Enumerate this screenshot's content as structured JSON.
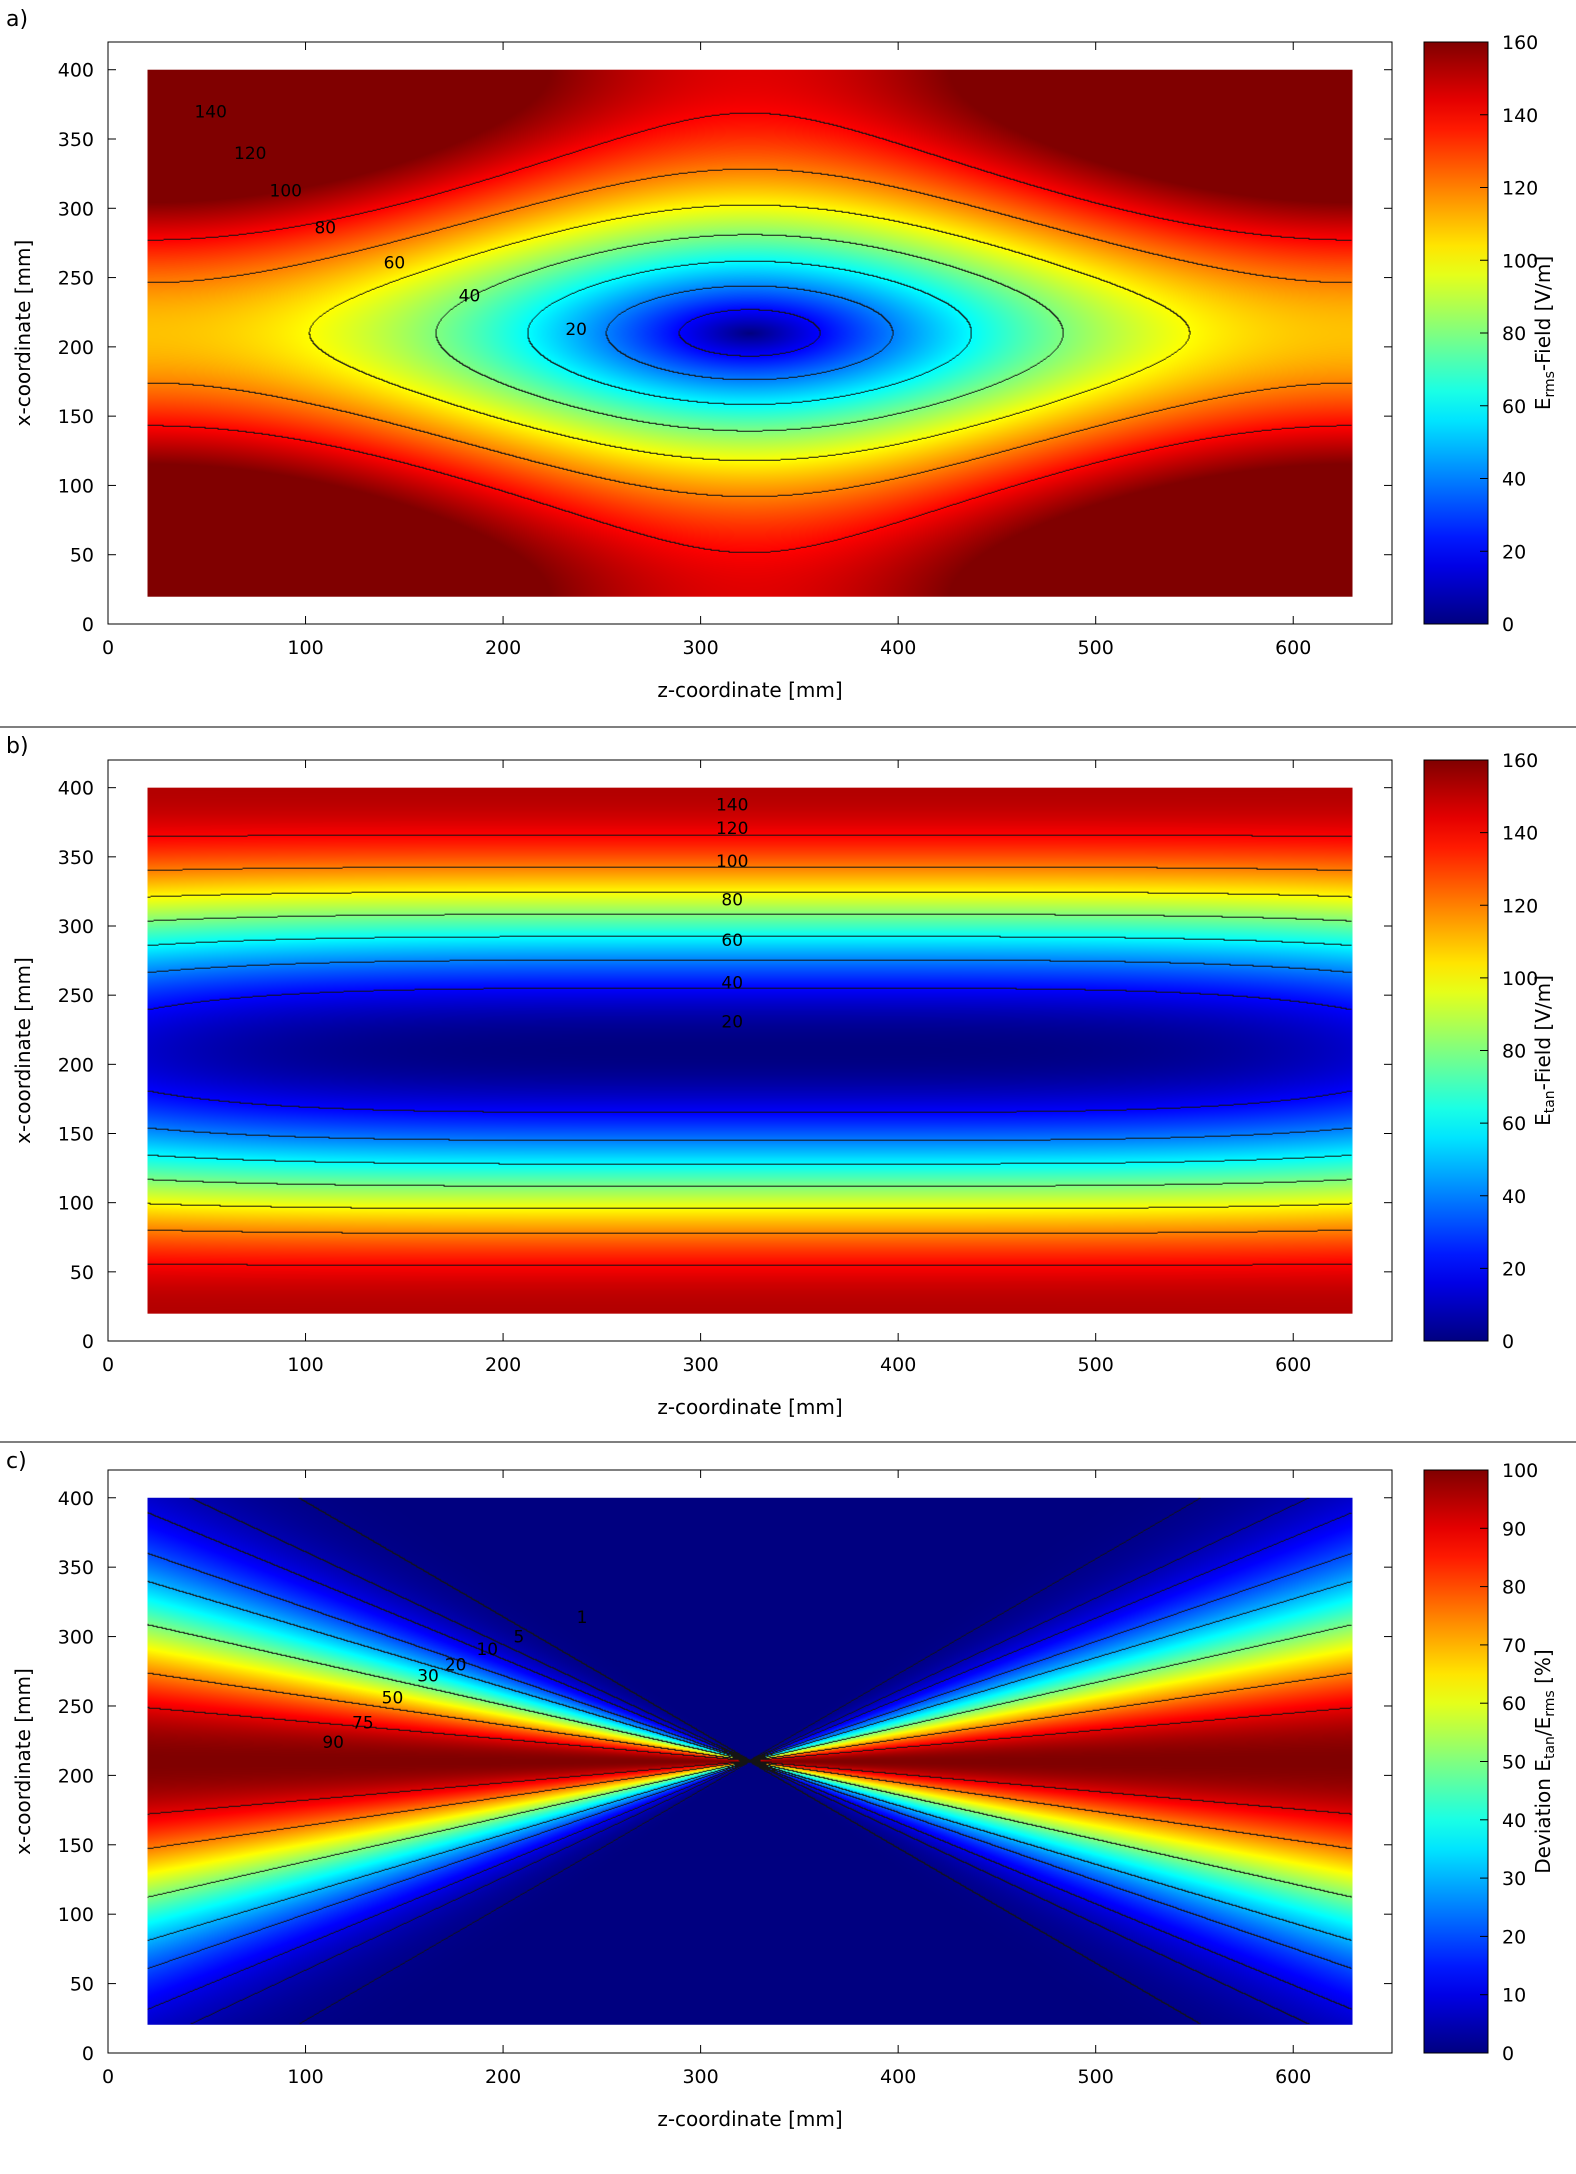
{
  "chart_data": [
    {
      "type": "heatmap",
      "panel_label": "a)",
      "field": "rms",
      "xlabel": "z-coordinate [mm]",
      "ylabel": "x-coordinate [mm]",
      "xlim": [
        0,
        650
      ],
      "ylim": [
        0,
        420
      ],
      "data_extent": {
        "z": [
          20,
          630
        ],
        "x": [
          20,
          400
        ]
      },
      "xticks": [
        "0",
        "100",
        "200",
        "300",
        "400",
        "500",
        "600"
      ],
      "yticks": [
        "0",
        "50",
        "100",
        "150",
        "200",
        "250",
        "300",
        "350",
        "400"
      ],
      "colorbar": {
        "label_main": "E",
        "label_sub": "rms",
        "label_tail": "-Field [V/m]",
        "range": [
          0,
          160
        ],
        "ticks": [
          "0",
          "20",
          "40",
          "60",
          "80",
          "100",
          "120",
          "140",
          "160"
        ]
      },
      "contour_levels": [
        20,
        40,
        60,
        80,
        100,
        120,
        140
      ],
      "contour_labels": [
        {
          "text": "140",
          "z": 52,
          "x": 370
        },
        {
          "text": "120",
          "z": 72,
          "x": 340
        },
        {
          "text": "100",
          "z": 90,
          "x": 313
        },
        {
          "text": "80",
          "z": 110,
          "x": 286
        },
        {
          "text": "60",
          "z": 145,
          "x": 261
        },
        {
          "text": "40",
          "z": 183,
          "x": 237
        },
        {
          "text": "20",
          "z": 237,
          "x": 213
        }
      ]
    },
    {
      "type": "heatmap",
      "panel_label": "b)",
      "field": "tan",
      "xlabel": "z-coordinate [mm]",
      "ylabel": "x-coordinate [mm]",
      "xlim": [
        0,
        650
      ],
      "ylim": [
        0,
        420
      ],
      "data_extent": {
        "z": [
          20,
          630
        ],
        "x": [
          20,
          400
        ]
      },
      "xticks": [
        "0",
        "100",
        "200",
        "300",
        "400",
        "500",
        "600"
      ],
      "yticks": [
        "0",
        "50",
        "100",
        "150",
        "200",
        "250",
        "300",
        "350",
        "400"
      ],
      "colorbar": {
        "label_main": "E",
        "label_sub": "tan",
        "label_tail": "-Field [V/m]",
        "range": [
          0,
          160
        ],
        "ticks": [
          "0",
          "20",
          "40",
          "60",
          "80",
          "100",
          "120",
          "140",
          "160"
        ]
      },
      "contour_levels": [
        20,
        40,
        60,
        80,
        100,
        120,
        140
      ],
      "contour_labels": [
        {
          "text": "140",
          "z": 316,
          "x": 388
        },
        {
          "text": "120",
          "z": 316,
          "x": 371
        },
        {
          "text": "100",
          "z": 316,
          "x": 347
        },
        {
          "text": "80",
          "z": 316,
          "x": 319
        },
        {
          "text": "60",
          "z": 316,
          "x": 290
        },
        {
          "text": "40",
          "z": 316,
          "x": 259
        },
        {
          "text": "20",
          "z": 316,
          "x": 231
        }
      ]
    },
    {
      "type": "heatmap",
      "panel_label": "c)",
      "field": "dev",
      "xlabel": "z-coordinate [mm]",
      "ylabel": "x-coordinate [mm]",
      "xlim": [
        0,
        650
      ],
      "ylim": [
        0,
        420
      ],
      "data_extent": {
        "z": [
          20,
          630
        ],
        "x": [
          20,
          400
        ]
      },
      "xticks": [
        "0",
        "100",
        "200",
        "300",
        "400",
        "500",
        "600"
      ],
      "yticks": [
        "0",
        "50",
        "100",
        "150",
        "200",
        "250",
        "300",
        "350",
        "400"
      ],
      "colorbar": {
        "label_main": "Deviation E",
        "label_sub": "tan",
        "label_tail": "/E",
        "label_sub2": "rms",
        "label_tail2": " [%]",
        "range": [
          0,
          100
        ],
        "ticks": [
          "0",
          "10",
          "20",
          "30",
          "40",
          "50",
          "60",
          "70",
          "80",
          "90",
          "100"
        ]
      },
      "contour_levels": [
        1,
        5,
        10,
        20,
        30,
        50,
        75,
        90
      ],
      "contour_labels": [
        {
          "text": "1",
          "z": 240,
          "x": 314
        },
        {
          "text": "5",
          "z": 208,
          "x": 300
        },
        {
          "text": "10",
          "z": 192,
          "x": 291
        },
        {
          "text": "20",
          "z": 176,
          "x": 280
        },
        {
          "text": "30",
          "z": 162,
          "x": 272
        },
        {
          "text": "50",
          "z": 144,
          "x": 256
        },
        {
          "text": "75",
          "z": 129,
          "x": 238
        },
        {
          "text": "90",
          "z": 114,
          "x": 224
        }
      ]
    }
  ]
}
